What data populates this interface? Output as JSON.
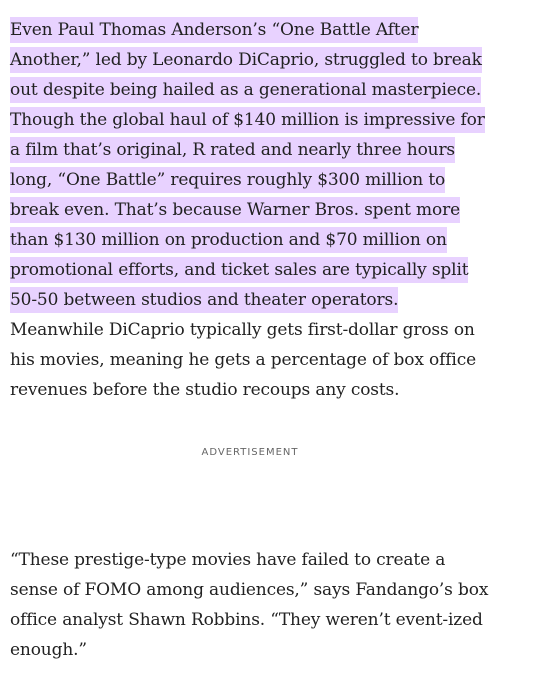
{
  "article": {
    "highlighted_lines": [
      "Even Paul Thomas Anderson’s “One Battle After",
      "Another,” led by Leonardo DiCaprio, struggled to break",
      "out despite being hailed as a generational masterpiece.",
      "Though the global haul of $140 million is impressive for",
      "a film that’s original, R rated and nearly three hours",
      "long, “One Battle” requires roughly $300 million to",
      "break even. That’s because Warner Bros. spent more",
      "than $130 million on production and $70 million on",
      "promotional efforts, and ticket sales are typically split",
      "50-50 between studios and theater operators."
    ],
    "plain_lines": [
      "Meanwhile DiCaprio typically gets first-dollar gross on",
      "his movies, meaning he gets a percentage of box office",
      "revenues before the studio recoups any costs."
    ],
    "advertisement_label": "ADVERTISEMENT",
    "quote_lines": [
      "“These prestige-type movies have failed to create a",
      "sense of FOMO among audiences,” says Fandango’s box",
      "office analyst Shawn Robbins. “They weren’t event-ized",
      "enough.”"
    ],
    "highlight_color": "#e8d2ff",
    "text_color": "#222222"
  }
}
